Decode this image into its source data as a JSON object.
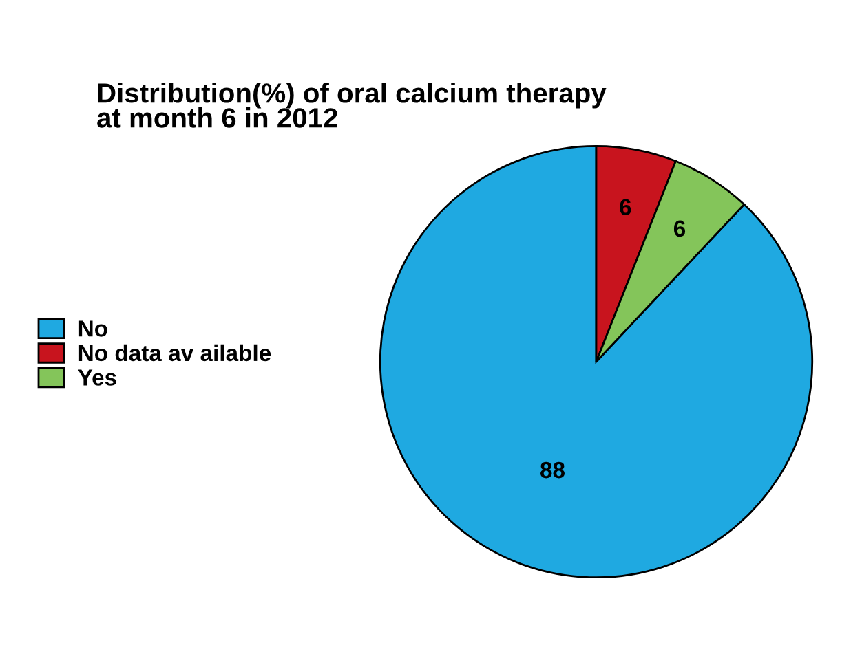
{
  "chart_data": {
    "type": "pie",
    "title": "Distribution(%) of oral calcium therapy\nat month 6 in 2012",
    "categories": [
      "No",
      "No data av ailable",
      "Yes"
    ],
    "values": [
      88,
      6,
      6
    ],
    "colors": [
      "#1fa9e1",
      "#c8141e",
      "#84c55a"
    ],
    "data_labels": true,
    "legend": "left"
  }
}
